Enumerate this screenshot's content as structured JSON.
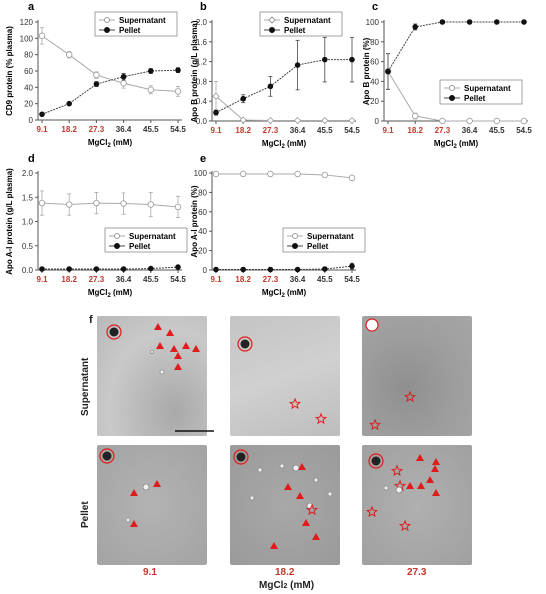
{
  "chart_data": [
    {
      "panel": "a",
      "type": "line",
      "categories": [
        "9.1",
        "18.2",
        "27.3",
        "36.4",
        "45.5",
        "54.5"
      ],
      "xlabel": "MgCl2 (mM)",
      "ylabel": "CD9 protein (% plasma)",
      "ylim": [
        0,
        120
      ],
      "yticks": [
        0,
        20,
        40,
        60,
        80,
        100,
        120
      ],
      "series": [
        {
          "name": "Supernatant",
          "values": [
            103,
            80,
            55,
            45,
            37,
            35
          ],
          "err": [
            10,
            4,
            4,
            6,
            5,
            6
          ],
          "marker": "open"
        },
        {
          "name": "Pellet",
          "values": [
            7,
            20,
            44,
            53,
            60,
            61
          ],
          "err": [
            1,
            1,
            3,
            4,
            3,
            3
          ],
          "marker": "filled"
        }
      ],
      "legend": "top-right"
    },
    {
      "panel": "b",
      "type": "line",
      "categories": [
        "9.1",
        "18.2",
        "27.3",
        "36.4",
        "45.5",
        "54.5"
      ],
      "xlabel": "MgCl2 (mM)",
      "ylabel": "Apo B protein (g/L plasma)",
      "ylim": [
        0,
        2.0
      ],
      "yticks": [
        0.0,
        0.4,
        0.8,
        1.2,
        1.6,
        2.0
      ],
      "series": [
        {
          "name": "Supernatant",
          "values": [
            0.5,
            0.02,
            0.01,
            0.01,
            0.01,
            0.01
          ],
          "err": [
            0.3,
            0.02,
            0,
            0,
            0,
            0
          ],
          "marker": "open-diamond"
        },
        {
          "name": "Pellet",
          "values": [
            0.17,
            0.45,
            0.7,
            1.13,
            1.24,
            1.24
          ],
          "err": [
            0.05,
            0.08,
            0.2,
            0.5,
            0.45,
            0.45
          ],
          "marker": "filled"
        }
      ],
      "legend": "top-right"
    },
    {
      "panel": "c",
      "type": "line",
      "categories": [
        "9.1",
        "18.2",
        "27.3",
        "36.4",
        "45.5",
        "54.5"
      ],
      "xlabel": "MgCl2 (mM)",
      "ylabel": "Apo B protein (%)",
      "ylim": [
        0,
        100
      ],
      "yticks": [
        0,
        20,
        40,
        60,
        80,
        100
      ],
      "series": [
        {
          "name": "Supernatant",
          "values": [
            50,
            5,
            0,
            0,
            0,
            0
          ],
          "err": [
            18,
            3,
            0,
            0,
            0,
            0
          ],
          "marker": "open"
        },
        {
          "name": "Pellet",
          "values": [
            50,
            95,
            100,
            100,
            100,
            100
          ],
          "err": [
            18,
            3,
            0,
            0,
            0,
            0
          ],
          "marker": "filled"
        }
      ],
      "legend": "bottom-right"
    },
    {
      "panel": "d",
      "type": "line",
      "categories": [
        "9.1",
        "18.2",
        "27.3",
        "36.4",
        "45.5",
        "54.5"
      ],
      "xlabel": "MgCl2 (mM)",
      "ylabel": "Apo A-I protein (g/L plasma)",
      "ylim": [
        0,
        2.0
      ],
      "yticks": [
        0.0,
        0.5,
        1.0,
        1.5,
        2.0
      ],
      "series": [
        {
          "name": "Supernatant",
          "values": [
            1.38,
            1.35,
            1.38,
            1.37,
            1.35,
            1.3
          ],
          "err": [
            0.25,
            0.22,
            0.22,
            0.22,
            0.25,
            0.22
          ],
          "marker": "open"
        },
        {
          "name": "Pellet",
          "values": [
            0.02,
            0.02,
            0.02,
            0.02,
            0.03,
            0.06
          ],
          "err": [
            0,
            0,
            0,
            0,
            0.01,
            0.02
          ],
          "marker": "filled"
        }
      ],
      "legend": "bottom-right"
    },
    {
      "panel": "e",
      "type": "line",
      "categories": [
        "9.1",
        "18.2",
        "27.3",
        "36.4",
        "45.5",
        "54.5"
      ],
      "xlabel": "MgCl2 (mM)",
      "ylabel": "Apo A-I protein (%)",
      "ylim": [
        0,
        100
      ],
      "yticks": [
        0,
        20,
        40,
        60,
        80,
        100
      ],
      "series": [
        {
          "name": "Supernatant",
          "values": [
            99,
            99,
            99,
            99,
            98,
            95
          ],
          "err": [
            0.5,
            0.5,
            0.5,
            0.5,
            1,
            1
          ],
          "marker": "open"
        },
        {
          "name": "Pellet",
          "values": [
            0.5,
            0.5,
            0.5,
            0.5,
            1,
            4
          ],
          "err": [
            0,
            0,
            0,
            0,
            0.5,
            3
          ],
          "marker": "filled"
        }
      ],
      "legend": "bottom-right"
    }
  ],
  "colors": {
    "highlight_red": "#c0392b",
    "axis": "#555555"
  },
  "panel_f": {
    "letter": "f",
    "row_labels": [
      "Supernatant",
      "Pellet"
    ],
    "col_labels": [
      "9.1",
      "18.2",
      "27.3"
    ],
    "axis_label": "MgCl2 (mM)"
  }
}
